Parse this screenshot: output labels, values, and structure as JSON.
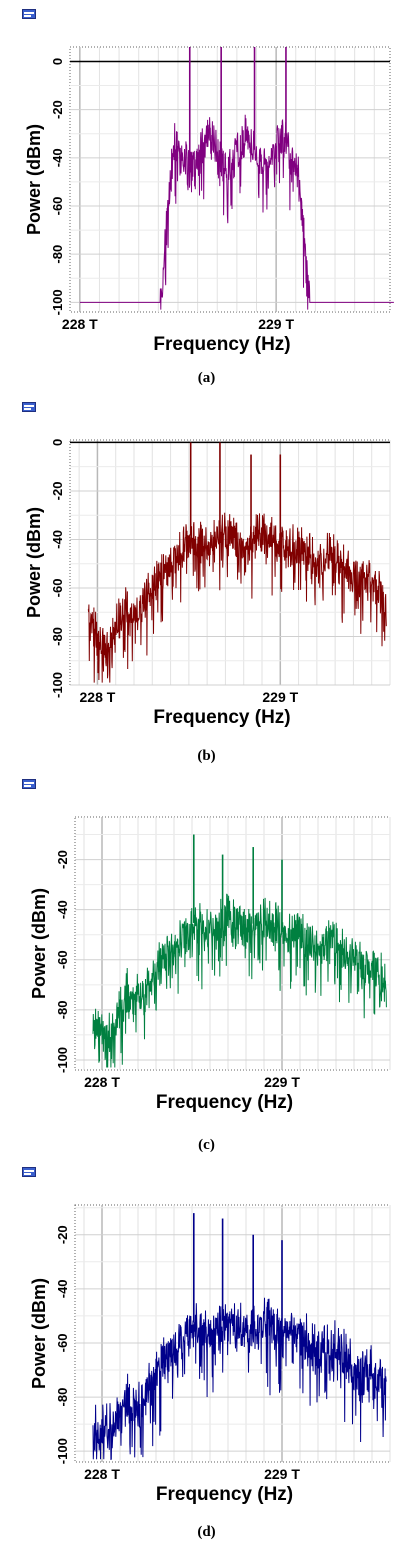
{
  "panels": [
    {
      "caption": "(a)",
      "chart_data": {
        "type": "line",
        "xlabel": "Frequency (Hz)",
        "ylabel": "Power (dBm)",
        "xticks": [
          "228 T",
          "229 T"
        ],
        "yticks": [
          "0",
          "-20",
          "-40",
          "-60",
          "-80",
          "-100"
        ],
        "ylim": [
          -104,
          6
        ],
        "xlim_thz": [
          227.95,
          229.58
        ],
        "color": "#800080",
        "series": [
          {
            "x_thz": [
              228.0,
              228.41,
              228.48,
              228.57,
              228.66,
              228.75,
              228.85,
              228.94,
              229.03,
              229.11,
              229.13,
              229.17,
              229.6
            ],
            "y": [
              -100,
              -100,
              -32,
              -45,
              -30,
              -45,
              -30,
              -45,
              -30,
              -45,
              -60,
              -100,
              -100
            ]
          }
        ],
        "peaks": [
          {
            "x_thz": 228.56,
            "y": 6
          },
          {
            "x_thz": 228.72,
            "y": 6
          },
          {
            "x_thz": 228.89,
            "y": 6
          },
          {
            "x_thz": 229.05,
            "y": 6
          }
        ]
      }
    },
    {
      "caption": "(b)",
      "chart_data": {
        "type": "line",
        "xlabel": "Frequency (Hz)",
        "ylabel": "Power (dBm)",
        "xticks": [
          "228 T",
          "229 T"
        ],
        "yticks": [
          "0",
          "-20",
          "-40",
          "-60",
          "-80",
          "-100"
        ],
        "ylim": [
          -100,
          1
        ],
        "xlim_thz": [
          227.85,
          229.6
        ],
        "color": "#800000",
        "series": [
          {
            "x_thz": [
              227.95,
              228.05,
              228.14,
              228.22,
              228.3,
              228.4,
              228.5,
              228.6,
              228.7,
              228.8,
              228.9,
              229.0,
              229.1,
              229.2,
              229.3,
              229.4,
              229.5,
              229.58
            ],
            "y": [
              -72,
              -85,
              -68,
              -70,
              -58,
              -50,
              -38,
              -42,
              -36,
              -42,
              -36,
              -42,
              -40,
              -48,
              -45,
              -55,
              -55,
              -65
            ]
          }
        ],
        "peaks": [
          {
            "x_thz": 228.51,
            "y": 0
          },
          {
            "x_thz": 228.67,
            "y": 0
          },
          {
            "x_thz": 228.84,
            "y": -5
          },
          {
            "x_thz": 229.0,
            "y": -5
          }
        ]
      }
    },
    {
      "caption": "(c)",
      "chart_data": {
        "type": "line",
        "xlabel": "Frequency (Hz)",
        "ylabel": "Power (dBm)",
        "xticks": [
          "228 T",
          "229 T"
        ],
        "yticks": [
          "-20",
          "-40",
          "-60",
          "-80",
          "-100"
        ],
        "ylim": [
          -104,
          -3
        ],
        "xlim_thz": [
          227.85,
          229.6
        ],
        "color": "#008040",
        "series": [
          {
            "x_thz": [
              227.95,
              228.05,
              228.14,
              228.22,
              228.3,
              228.4,
              228.5,
              228.6,
              228.7,
              228.8,
              228.9,
              229.0,
              229.1,
              229.2,
              229.3,
              229.4,
              229.5,
              229.58
            ],
            "y": [
              -85,
              -90,
              -72,
              -75,
              -62,
              -55,
              -45,
              -48,
              -42,
              -48,
              -42,
              -48,
              -46,
              -54,
              -52,
              -60,
              -62,
              -68
            ]
          }
        ],
        "peaks": [
          {
            "x_thz": 228.51,
            "y": -10
          },
          {
            "x_thz": 228.67,
            "y": -18
          },
          {
            "x_thz": 228.84,
            "y": -15
          },
          {
            "x_thz": 229.0,
            "y": -20
          }
        ]
      }
    },
    {
      "caption": "(d)",
      "chart_data": {
        "type": "line",
        "xlabel": "Frequency (Hz)",
        "ylabel": "Power (dBm)",
        "xticks": [
          "228 T",
          "229 T"
        ],
        "yticks": [
          "-20",
          "-40",
          "-60",
          "-80",
          "-100"
        ],
        "ylim": [
          -104,
          -9
        ],
        "xlim_thz": [
          227.85,
          229.6
        ],
        "color": "#00008b",
        "series": [
          {
            "x_thz": [
              227.95,
              228.05,
              228.14,
              228.22,
              228.3,
              228.4,
              228.5,
              228.6,
              228.7,
              228.8,
              228.9,
              229.0,
              229.1,
              229.2,
              229.3,
              229.4,
              229.5,
              229.58
            ],
            "y": [
              -92,
              -90,
              -80,
              -82,
              -70,
              -62,
              -52,
              -56,
              -50,
              -56,
              -50,
              -56,
              -55,
              -62,
              -60,
              -68,
              -70,
              -76
            ]
          }
        ],
        "peaks": [
          {
            "x_thz": 228.51,
            "y": -12
          },
          {
            "x_thz": 228.67,
            "y": -14
          },
          {
            "x_thz": 228.84,
            "y": -20
          },
          {
            "x_thz": 229.0,
            "y": -22
          }
        ]
      }
    }
  ]
}
